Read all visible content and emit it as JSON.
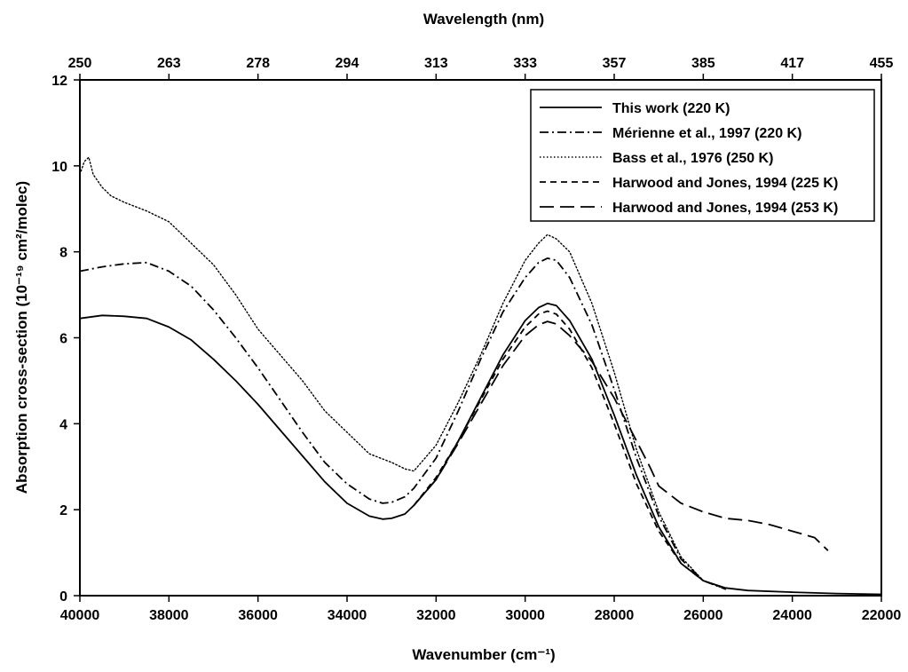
{
  "chart_data": {
    "type": "line",
    "xlabel": "Wavenumber (cm⁻¹)",
    "x2label": "Wavelength (nm)",
    "ylabel": "Absorption cross-section (10⁻¹⁹ cm²/molec)",
    "xlim": [
      40000,
      22000
    ],
    "ylim": [
      0,
      12
    ],
    "x_reversed": true,
    "grid": false,
    "legend_position": "top-right",
    "x_ticks": [
      "40000",
      "38000",
      "36000",
      "34000",
      "32000",
      "30000",
      "28000",
      "26000",
      "24000",
      "22000"
    ],
    "y_ticks": [
      "0",
      "2",
      "4",
      "6",
      "8",
      "10",
      "12"
    ],
    "top_ticks": [
      {
        "label": "250",
        "wavenumber": 40000
      },
      {
        "label": "263",
        "wavenumber": 38000
      },
      {
        "label": "278",
        "wavenumber": 36000
      },
      {
        "label": "294",
        "wavenumber": 34000
      },
      {
        "label": "313",
        "wavenumber": 32000
      },
      {
        "label": "333",
        "wavenumber": 30000
      },
      {
        "label": "357",
        "wavenumber": 28000
      },
      {
        "label": "385",
        "wavenumber": 26000
      },
      {
        "label": "417",
        "wavenumber": 24000
      },
      {
        "label": "455",
        "wavenumber": 22000
      }
    ],
    "series": [
      {
        "name": "This work (220 K)",
        "dash": "solid",
        "x": [
          40000,
          39500,
          39000,
          38500,
          38000,
          37500,
          37000,
          36500,
          36000,
          35500,
          35000,
          34500,
          34000,
          33500,
          33200,
          33000,
          32700,
          32500,
          32000,
          31500,
          31000,
          30500,
          30000,
          29700,
          29500,
          29300,
          29000,
          28500,
          28000,
          27500,
          27000,
          26500,
          26000,
          25500,
          25000,
          24000,
          23000,
          22000
        ],
        "y": [
          6.45,
          6.52,
          6.5,
          6.45,
          6.25,
          5.95,
          5.5,
          5.0,
          4.45,
          3.85,
          3.25,
          2.65,
          2.15,
          1.85,
          1.78,
          1.8,
          1.9,
          2.1,
          2.7,
          3.6,
          4.6,
          5.6,
          6.4,
          6.7,
          6.8,
          6.75,
          6.4,
          5.5,
          4.2,
          2.8,
          1.6,
          0.75,
          0.35,
          0.18,
          0.12,
          0.08,
          0.05,
          0.03
        ]
      },
      {
        "name": "Mérienne et al., 1997 (220 K)",
        "dash": "dashdot",
        "x": [
          40000,
          39500,
          39000,
          38500,
          38000,
          37500,
          37000,
          36500,
          36000,
          35500,
          35000,
          34500,
          34000,
          33500,
          33200,
          33000,
          32700,
          32500,
          32000,
          31500,
          31000,
          30500,
          30000,
          29700,
          29500,
          29300,
          29000,
          28500,
          28000,
          27500,
          27000,
          26500,
          26000,
          25500
        ],
        "y": [
          7.55,
          7.65,
          7.72,
          7.75,
          7.55,
          7.2,
          6.65,
          6.0,
          5.3,
          4.55,
          3.8,
          3.1,
          2.6,
          2.25,
          2.15,
          2.17,
          2.3,
          2.5,
          3.2,
          4.3,
          5.5,
          6.6,
          7.4,
          7.75,
          7.85,
          7.8,
          7.4,
          6.3,
          4.8,
          3.2,
          1.85,
          0.85,
          0.35,
          0.15
        ]
      },
      {
        "name": "Bass et al., 1976 (250 K)",
        "dash": "dotted",
        "x": [
          40000,
          39900,
          39800,
          39700,
          39500,
          39300,
          39000,
          38500,
          38000,
          37800,
          37500,
          37000,
          36500,
          36000,
          35500,
          35000,
          34500,
          34000,
          33500,
          33000,
          32700,
          32500,
          32000,
          31500,
          31000,
          30500,
          30000,
          29700,
          29500,
          29300,
          29000,
          28500,
          28000,
          27500,
          27000,
          26500,
          26000,
          25500
        ],
        "y": [
          9.8,
          10.1,
          10.2,
          9.8,
          9.5,
          9.3,
          9.15,
          8.95,
          8.7,
          8.5,
          8.2,
          7.7,
          7.0,
          6.2,
          5.6,
          5.0,
          4.3,
          3.8,
          3.3,
          3.1,
          2.95,
          2.9,
          3.5,
          4.5,
          5.6,
          6.8,
          7.8,
          8.2,
          8.4,
          8.3,
          8.0,
          6.8,
          5.2,
          3.4,
          1.95,
          0.9,
          0.35,
          0.15
        ]
      },
      {
        "name": "Harwood and Jones, 1994 (225 K)",
        "dash": "dashed",
        "x": [
          32500,
          32000,
          31500,
          31000,
          30500,
          30000,
          29700,
          29500,
          29300,
          29000,
          28500,
          28000,
          27500,
          27000,
          26500,
          26000
        ],
        "y": [
          2.1,
          2.75,
          3.6,
          4.55,
          5.5,
          6.25,
          6.55,
          6.62,
          6.55,
          6.2,
          5.3,
          4.0,
          2.6,
          1.5,
          0.75,
          0.35
        ]
      },
      {
        "name": "Harwood and Jones, 1994 (253 K)",
        "dash": "longdash",
        "x": [
          32500,
          32000,
          31500,
          31000,
          30500,
          30000,
          29700,
          29500,
          29300,
          29000,
          28500,
          28000,
          27500,
          27200,
          27000,
          26500,
          26000,
          25500,
          25000,
          24500,
          24000,
          23500,
          23200
        ],
        "y": [
          2.1,
          2.7,
          3.55,
          4.45,
          5.35,
          6.05,
          6.3,
          6.38,
          6.32,
          6.05,
          5.45,
          4.6,
          3.6,
          3.0,
          2.55,
          2.15,
          1.95,
          1.8,
          1.75,
          1.65,
          1.5,
          1.35,
          1.05
        ]
      }
    ]
  }
}
